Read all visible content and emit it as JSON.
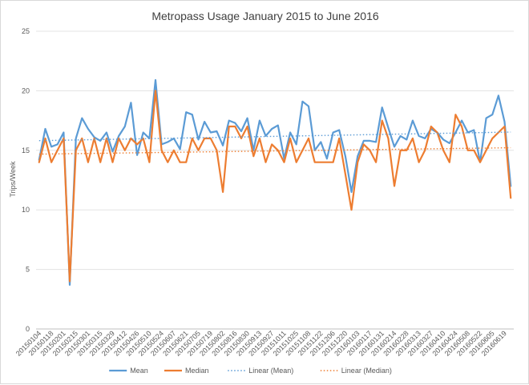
{
  "chart_data": {
    "type": "line",
    "title": "Metropass Usage January 2015 to June 2016",
    "xlabel": "",
    "ylabel": "Trips/Week",
    "ylim": [
      0,
      25
    ],
    "yticks": [
      0,
      5,
      10,
      15,
      20,
      25
    ],
    "grid": "horizontal",
    "legend_position": "bottom",
    "x": [
      "20150104",
      "20150111",
      "20150118",
      "20150125",
      "20150201",
      "20150208",
      "20150215",
      "20150222",
      "20150301",
      "20150308",
      "20150315",
      "20150322",
      "20150329",
      "20150405",
      "20150412",
      "20150419",
      "20150426",
      "20150503",
      "20150510",
      "20150517",
      "20150524",
      "20150531",
      "20150607",
      "20150614",
      "20150621",
      "20150628",
      "20150705",
      "20150712",
      "20150719",
      "20150726",
      "20150802",
      "20150809",
      "20150816",
      "20150823",
      "20150830",
      "20150906",
      "20150913",
      "20150920",
      "20150927",
      "20151004",
      "20151011",
      "20151018",
      "20151025",
      "20151101",
      "20151108",
      "20151115",
      "20151122",
      "20151129",
      "20151206",
      "20151213",
      "20151220",
      "20151227",
      "20160103",
      "20160110",
      "20160117",
      "20160124",
      "20160131",
      "20160207",
      "20160214",
      "20160221",
      "20160228",
      "20160306",
      "20160313",
      "20160320",
      "20160327",
      "20160403",
      "20160410",
      "20160417",
      "20160424",
      "20160501",
      "20160508",
      "20160515",
      "20160522",
      "20160529",
      "20160605",
      "20160612",
      "20160619",
      "20160626"
    ],
    "x_tick_labels": [
      "20150104",
      "20150118",
      "20150201",
      "20150215",
      "20150301",
      "20150315",
      "20150329",
      "20150412",
      "20150426",
      "20150510",
      "20150524",
      "20150607",
      "20150621",
      "20150705",
      "20150719",
      "20150802",
      "20150816",
      "20150830",
      "20150913",
      "20150927",
      "20151011",
      "20151025",
      "20151108",
      "20151122",
      "20151206",
      "20151220",
      "20160103",
      "20160117",
      "20160131",
      "20160214",
      "20160228",
      "20160313",
      "20160327",
      "20160410",
      "20160424",
      "20160508",
      "20160522",
      "20160605",
      "20160619"
    ],
    "series": [
      {
        "name": "Mean",
        "color": "#5b9bd5",
        "style": "solid",
        "values": [
          14.2,
          16.8,
          15.3,
          15.5,
          16.5,
          3.7,
          16.0,
          17.7,
          16.8,
          16.1,
          15.8,
          16.5,
          14.9,
          16.2,
          17.0,
          19.0,
          14.6,
          16.5,
          16.0,
          20.9,
          15.5,
          15.7,
          16.0,
          15.1,
          18.2,
          18.0,
          15.9,
          17.4,
          16.5,
          16.6,
          15.4,
          17.5,
          17.3,
          16.6,
          17.7,
          15.0,
          17.5,
          16.2,
          16.8,
          17.1,
          14.3,
          16.5,
          15.5,
          19.1,
          18.7,
          15.0,
          15.7,
          14.3,
          16.5,
          16.7,
          14.5,
          11.5,
          14.5,
          15.8,
          15.8,
          15.7,
          18.6,
          16.9,
          15.3,
          16.2,
          15.9,
          17.5,
          16.2,
          16.0,
          16.8,
          16.5,
          15.9,
          15.6,
          16.5,
          17.5,
          16.5,
          16.7,
          14.0,
          17.7,
          18.0,
          19.6,
          17.4,
          12.0
        ]
      },
      {
        "name": "Median",
        "color": "#ed7d31",
        "style": "solid",
        "values": [
          14.0,
          16.0,
          14.0,
          15.0,
          16.0,
          4.0,
          15.0,
          16.0,
          14.0,
          16.0,
          14.0,
          16.0,
          14.0,
          16.0,
          15.0,
          16.0,
          15.5,
          16.0,
          14.0,
          20.0,
          15.0,
          14.0,
          15.0,
          14.0,
          14.0,
          16.0,
          15.0,
          16.0,
          16.0,
          15.0,
          11.5,
          17.0,
          17.0,
          16.0,
          17.0,
          14.5,
          16.0,
          14.0,
          15.5,
          15.0,
          14.0,
          16.0,
          14.0,
          15.0,
          16.0,
          14.0,
          14.0,
          14.0,
          14.0,
          16.0,
          13.0,
          10.0,
          14.0,
          15.5,
          15.0,
          14.0,
          17.5,
          16.0,
          12.0,
          15.0,
          15.0,
          16.0,
          14.0,
          15.0,
          17.0,
          16.5,
          15.0,
          14.0,
          18.0,
          17.0,
          15.0,
          15.0,
          14.0,
          15.0,
          16.0,
          16.5,
          17.0,
          11.0
        ]
      },
      {
        "name": "Linear (Mean)",
        "color": "#5b9bd5",
        "style": "dotted",
        "trend_of": "Mean"
      },
      {
        "name": "Linear (Median)",
        "color": "#ed7d31",
        "style": "dotted",
        "trend_of": "Median"
      }
    ]
  }
}
